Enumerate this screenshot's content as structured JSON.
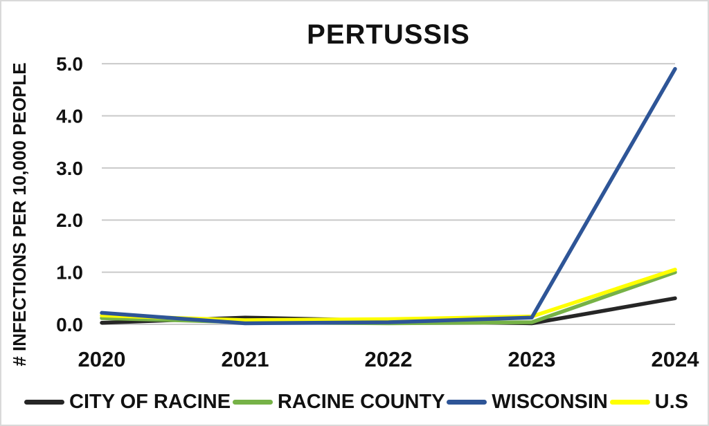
{
  "chart_data": {
    "type": "line",
    "title": "PERTUSSIS",
    "ylabel": "# INFECTIONS PER 10,000 PEOPLE",
    "xlabel": "",
    "categories": [
      "2020",
      "2021",
      "2022",
      "2023",
      "2024"
    ],
    "series": [
      {
        "name": "CITY OF RACINE",
        "color": "#262626",
        "values": [
          0.03,
          0.13,
          0.07,
          0.02,
          0.5
        ]
      },
      {
        "name": "RACINE COUNTY",
        "color": "#76b247",
        "values": [
          0.12,
          0.04,
          0.02,
          0.04,
          1.0
        ]
      },
      {
        "name": "WISCONSIN",
        "color": "#2e5597",
        "values": [
          0.22,
          0.02,
          0.04,
          0.13,
          4.9
        ]
      },
      {
        "name": "U.S",
        "color": "#ffff00",
        "values": [
          0.17,
          0.08,
          0.1,
          0.15,
          1.05
        ]
      }
    ],
    "ylim": [
      0,
      5
    ],
    "yticks": [
      0,
      1,
      2,
      3,
      4,
      5
    ],
    "ytick_labels": [
      "0.0",
      "1.0",
      "2.0",
      "3.0",
      "4.0",
      "5.0"
    ],
    "grid": true,
    "gridline_color": "#c9c9c9",
    "legend_position": "bottom",
    "draw_order": [
      0,
      1,
      3,
      2
    ]
  }
}
